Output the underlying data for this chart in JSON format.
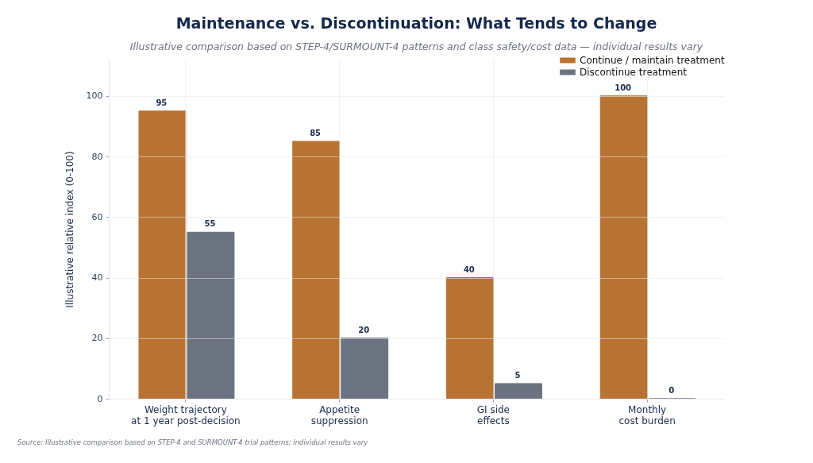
{
  "chart_data": {
    "type": "bar",
    "title": "Maintenance vs. Discontinuation: What Tends to Change",
    "subtitle": "Illustrative comparison based on STEP-4/SURMOUNT-4 patterns and class safety/cost data — individual results vary",
    "ylabel": "Illustrative relative index (0-100)",
    "categories": [
      "Weight trajectory\nat 1 year post-decision",
      "Appetite\nsuppression",
      "GI side\neffects",
      "Monthly\ncost burden"
    ],
    "series": [
      {
        "name": "Continue / maintain treatment",
        "color": "#b87333",
        "values": [
          95,
          85,
          40,
          100
        ]
      },
      {
        "name": "Discontinue treatment",
        "color": "#6b7280",
        "values": [
          55,
          20,
          5,
          0
        ]
      }
    ],
    "ylim": [
      0,
      112
    ],
    "yticks": [
      0,
      20,
      40,
      60,
      80,
      100
    ],
    "grid": true,
    "legend": "top right",
    "data_labels": true,
    "annotations": [
      "Source: Illustrative comparison based on STEP-4 and SURMOUNT-4 trial patterns; individual results vary"
    ]
  }
}
